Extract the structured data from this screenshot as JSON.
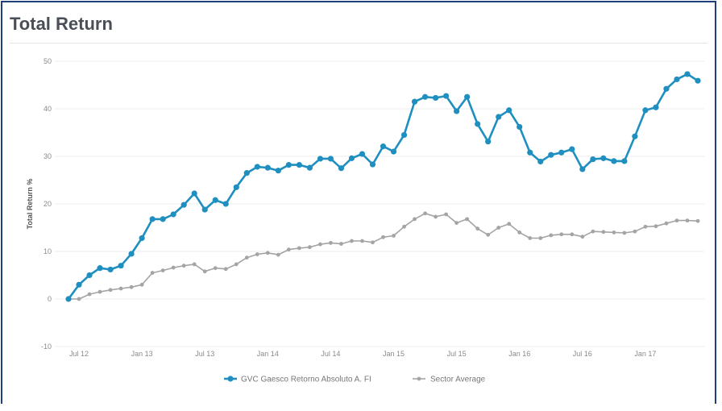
{
  "title": "Total Return",
  "colors": {
    "fund": "#1f8fbf",
    "sector": "#a4a4a4",
    "grid": "#ececec"
  },
  "chart_data": {
    "type": "line",
    "title": "Total Return",
    "xlabel": "",
    "ylabel": "Total Return %",
    "ylim": [
      -10,
      50
    ],
    "yticks": [
      -10,
      0,
      10,
      20,
      30,
      40,
      50
    ],
    "xticks": [
      "Jul 12",
      "Jan 13",
      "Jul 13",
      "Jan 14",
      "Jul 14",
      "Jan 15",
      "Jul 15",
      "Jan 16",
      "Jul 16",
      "Jan 17"
    ],
    "x_start": "2012-06",
    "x_interval": "monthly",
    "grid": true,
    "legend_position": "bottom",
    "series": [
      {
        "name": "GVC Gaesco Retorno Absoluto A. FI",
        "values": [
          0,
          3,
          5,
          6.5,
          6.2,
          7,
          9.5,
          12.8,
          16.8,
          16.8,
          17.8,
          19.8,
          22.2,
          18.8,
          20.8,
          20,
          23.5,
          26.5,
          27.8,
          27.6,
          27,
          28.2,
          28.2,
          27.6,
          29.5,
          29.5,
          27.5,
          29.6,
          30.5,
          28.3,
          32.1,
          31,
          34.5,
          41.5,
          42.5,
          42.3,
          42.7,
          39.5,
          42.5,
          36.8,
          33.1,
          38.3,
          39.7,
          36.2,
          30.8,
          28.9,
          30.3,
          30.8,
          31.5,
          27.3,
          29.4,
          29.6,
          29,
          29,
          34.2,
          39.7,
          40.3,
          44.2,
          46.2,
          47.3,
          45.9
        ]
      },
      {
        "name": "Sector Average",
        "values": [
          0,
          0,
          1,
          1.5,
          1.9,
          2.2,
          2.5,
          3,
          5.5,
          6,
          6.6,
          7,
          7.3,
          5.8,
          6.5,
          6.3,
          7.3,
          8.7,
          9.4,
          9.7,
          9.3,
          10.4,
          10.7,
          10.9,
          11.5,
          11.8,
          11.6,
          12.2,
          12.2,
          11.9,
          13,
          13.3,
          15.2,
          16.8,
          18,
          17.3,
          17.8,
          16,
          16.8,
          14.8,
          13.5,
          15,
          15.8,
          14,
          12.8,
          12.8,
          13.4,
          13.6,
          13.6,
          13.1,
          14.2,
          14.1,
          14,
          13.9,
          14.2,
          15.2,
          15.3,
          15.9,
          16.5,
          16.5,
          16.4
        ]
      }
    ]
  }
}
